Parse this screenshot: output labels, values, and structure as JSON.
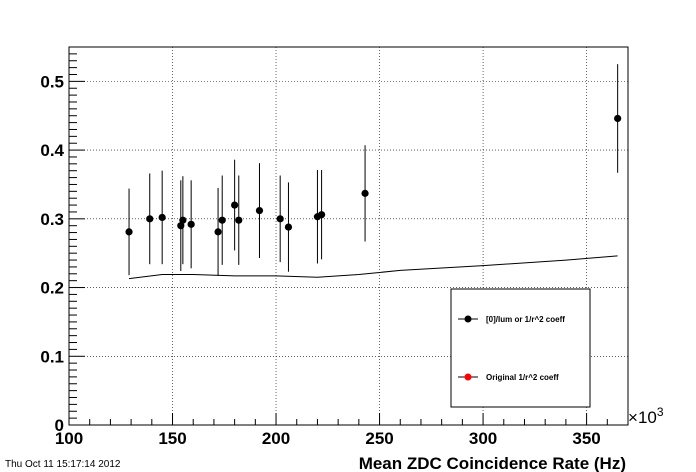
{
  "chart_data": {
    "type": "scatter",
    "xlabel": "Mean ZDC Coincidence Rate (Hz)",
    "x_multiplier": "10",
    "x_multiplier_exp": "3",
    "xlim": [
      100,
      370
    ],
    "ylim": [
      0,
      0.55
    ],
    "x_ticks": [
      100,
      150,
      200,
      250,
      300,
      350
    ],
    "y_ticks": [
      0,
      0.1,
      0.2,
      0.3,
      0.4,
      0.5
    ],
    "grid": true,
    "legend_position": "bottom-right",
    "series": [
      {
        "name": "[0]/lum or 1/r^2 coeff",
        "style": "points-with-error-bars",
        "color": "#000000",
        "points": [
          {
            "x": 129,
            "y": 0.281,
            "err": 0.063
          },
          {
            "x": 139,
            "y": 0.3,
            "err": 0.066
          },
          {
            "x": 145,
            "y": 0.302,
            "err": 0.068
          },
          {
            "x": 154,
            "y": 0.29,
            "err": 0.066
          },
          {
            "x": 155,
            "y": 0.298,
            "err": 0.064
          },
          {
            "x": 159,
            "y": 0.292,
            "err": 0.064
          },
          {
            "x": 172,
            "y": 0.281,
            "err": 0.064
          },
          {
            "x": 174,
            "y": 0.298,
            "err": 0.065
          },
          {
            "x": 180,
            "y": 0.32,
            "err": 0.066
          },
          {
            "x": 182,
            "y": 0.298,
            "err": 0.065
          },
          {
            "x": 192,
            "y": 0.312,
            "err": 0.069
          },
          {
            "x": 202,
            "y": 0.3,
            "err": 0.063
          },
          {
            "x": 206,
            "y": 0.288,
            "err": 0.065
          },
          {
            "x": 220,
            "y": 0.303,
            "err": 0.068
          },
          {
            "x": 222,
            "y": 0.306,
            "err": 0.065
          },
          {
            "x": 243,
            "y": 0.337,
            "err": 0.07
          },
          {
            "x": 365,
            "y": 0.446,
            "err": 0.079
          }
        ]
      },
      {
        "name": "Original 1/r^2 coeff",
        "style": "line",
        "color": "#000000",
        "marker_color": "#ff0000",
        "points": [
          {
            "x": 129,
            "y": 0.213
          },
          {
            "x": 145,
            "y": 0.219
          },
          {
            "x": 160,
            "y": 0.219
          },
          {
            "x": 180,
            "y": 0.217
          },
          {
            "x": 200,
            "y": 0.217
          },
          {
            "x": 220,
            "y": 0.215
          },
          {
            "x": 240,
            "y": 0.219
          },
          {
            "x": 260,
            "y": 0.225
          },
          {
            "x": 300,
            "y": 0.232
          },
          {
            "x": 340,
            "y": 0.24
          },
          {
            "x": 365,
            "y": 0.246
          }
        ]
      }
    ]
  },
  "footer": {
    "timestamp": "Thu Oct 11 15:17:14 2012"
  }
}
